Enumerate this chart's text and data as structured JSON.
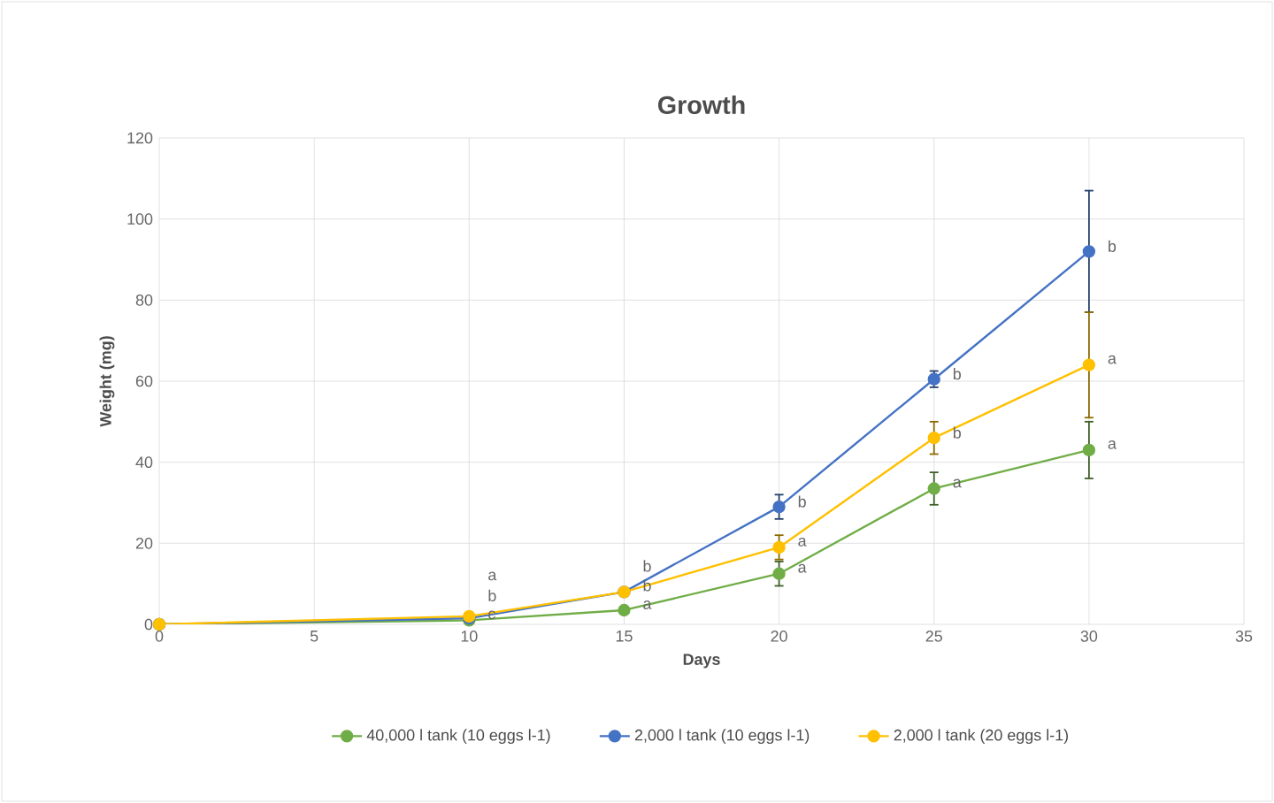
{
  "chart_data": {
    "type": "line",
    "title": "Growth",
    "xlabel": "Days",
    "ylabel": "Weight (mg)",
    "x": [
      0,
      10,
      15,
      20,
      25,
      30
    ],
    "series": [
      {
        "name": "40,000 l tank (10 eggs l-1)",
        "color": "#70ad47",
        "values": [
          0,
          1,
          3.5,
          12.5,
          33.5,
          43
        ],
        "errors": [
          null,
          null,
          null,
          3,
          4,
          7
        ]
      },
      {
        "name": "2,000 l tank (10 eggs l-1)",
        "color": "#4472c4",
        "values": [
          0,
          1.5,
          8,
          29,
          60.5,
          92
        ],
        "errors": [
          null,
          null,
          null,
          3,
          2,
          15
        ]
      },
      {
        "name": "2,000 l tank (20 eggs l-1)",
        "color": "#ffc000",
        "values": [
          0,
          2,
          8,
          19,
          46,
          64
        ],
        "errors": [
          null,
          null,
          null,
          3,
          4,
          13
        ]
      }
    ],
    "xlim": [
      0,
      35
    ],
    "xticks": [
      0,
      5,
      10,
      15,
      20,
      25,
      30,
      35
    ],
    "ylim": [
      0,
      120
    ],
    "yticks": [
      0,
      20,
      40,
      60,
      80,
      100,
      120
    ],
    "grid": true,
    "legend": "bottom",
    "marker": "circle",
    "annotations": [
      {
        "text": "b",
        "x": 10,
        "y": 1.5
      },
      {
        "text": "a",
        "x": 10,
        "y": 2
      },
      {
        "text": "c",
        "x": 10,
        "y": 1
      },
      {
        "text": "b",
        "x": 15,
        "y": 8
      },
      {
        "text": "b",
        "x": 15,
        "y": 8
      },
      {
        "text": "a",
        "x": 15,
        "y": 3.5
      },
      {
        "text": "b",
        "x": 20,
        "y": 29
      },
      {
        "text": "a",
        "x": 20,
        "y": 19
      },
      {
        "text": "a",
        "x": 20,
        "y": 12.5
      },
      {
        "text": "b",
        "x": 25,
        "y": 60.5
      },
      {
        "text": "b",
        "x": 25,
        "y": 46
      },
      {
        "text": "a",
        "x": 25,
        "y": 33.5
      },
      {
        "text": "b",
        "x": 30,
        "y": 92
      },
      {
        "text": "a",
        "x": 30,
        "y": 64
      },
      {
        "text": "a",
        "x": 30,
        "y": 43
      }
    ]
  }
}
